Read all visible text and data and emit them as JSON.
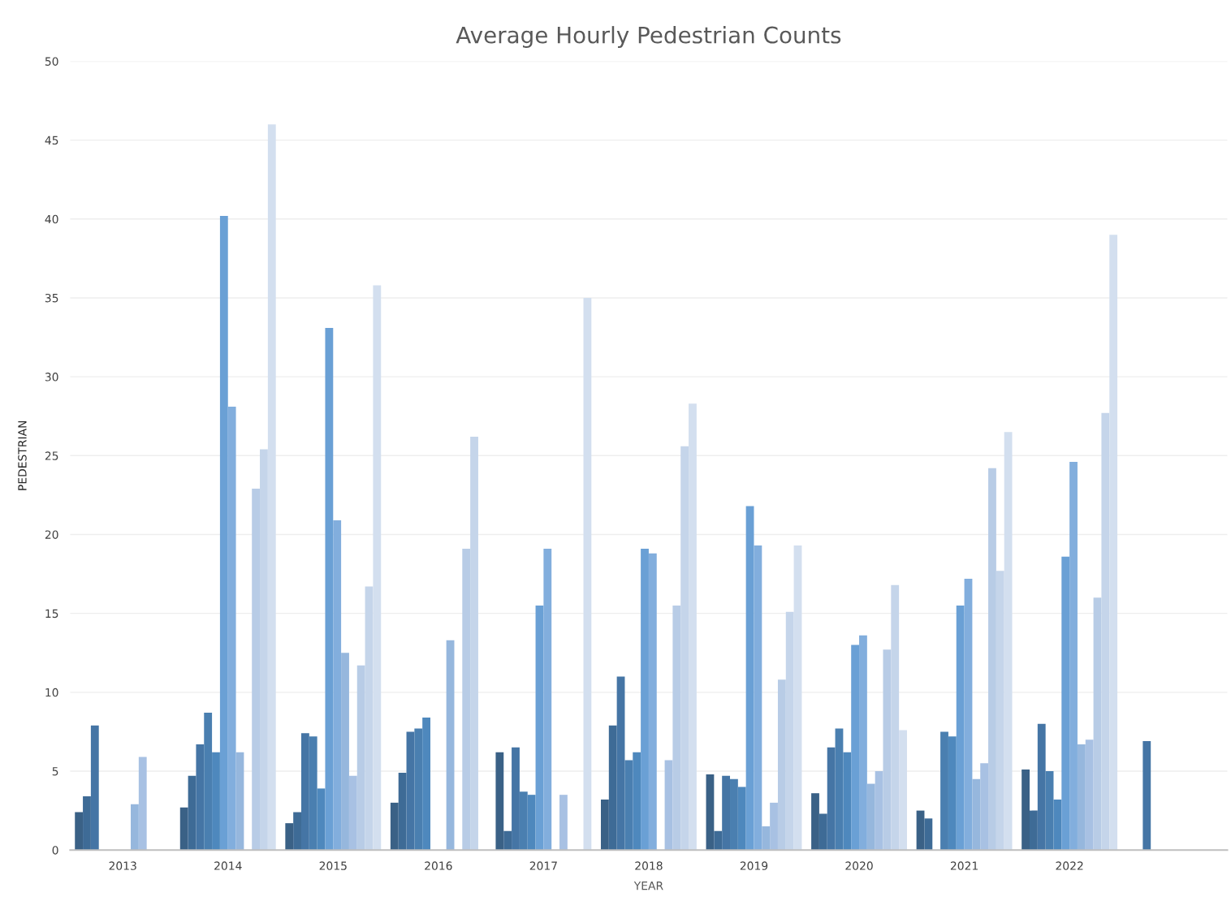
{
  "chart_data": {
    "type": "bar",
    "title": "Average Hourly Pedestrian Counts",
    "xlabel": "YEAR",
    "ylabel": "PEDESTRIAN",
    "categories": [
      "2013",
      "2014",
      "2015",
      "2016",
      "2017",
      "2018",
      "2019",
      "2020",
      "2021",
      "2022",
      null
    ],
    "series": [
      {
        "color": "#3a6186",
        "values": [
          2.4,
          2.7,
          1.7,
          3.0,
          6.2,
          3.2,
          4.8,
          3.6,
          2.5,
          5.1,
          null
        ]
      },
      {
        "color": "#3e6b96",
        "values": [
          3.4,
          4.7,
          2.4,
          4.9,
          1.2,
          7.9,
          1.2,
          2.3,
          2.0,
          2.5,
          null
        ]
      },
      {
        "color": "#4575a5",
        "values": [
          7.9,
          6.7,
          7.4,
          7.5,
          6.5,
          11.0,
          4.7,
          6.5,
          null,
          8.0,
          6.9
        ]
      },
      {
        "color": "#4a7fb0",
        "values": [
          null,
          8.7,
          7.2,
          7.7,
          3.7,
          5.7,
          4.5,
          7.7,
          7.5,
          5.0,
          null
        ]
      },
      {
        "color": "#4e88bd",
        "values": [
          null,
          6.2,
          3.9,
          8.4,
          3.5,
          6.2,
          4.0,
          6.2,
          7.2,
          3.2,
          null
        ]
      },
      {
        "color": "#6aa0d5",
        "values": [
          null,
          40.2,
          33.1,
          null,
          15.5,
          19.1,
          21.8,
          13.0,
          15.5,
          18.6,
          null
        ]
      },
      {
        "color": "#82aedd",
        "values": [
          null,
          28.1,
          20.9,
          null,
          19.1,
          18.8,
          19.3,
          13.6,
          17.2,
          24.6,
          null
        ]
      },
      {
        "color": "#96b7dd",
        "values": [
          2.9,
          6.2,
          12.5,
          13.3,
          null,
          null,
          1.5,
          4.2,
          4.5,
          6.7,
          null
        ]
      },
      {
        "color": "#a8c1e3",
        "values": [
          5.9,
          null,
          4.7,
          null,
          3.5,
          5.7,
          3.0,
          5.0,
          5.5,
          7.0,
          null
        ]
      },
      {
        "color": "#b8cce6",
        "values": [
          null,
          22.9,
          11.7,
          19.1,
          null,
          15.5,
          10.8,
          12.7,
          24.2,
          16.0,
          null
        ]
      },
      {
        "color": "#c5d5ea",
        "values": [
          null,
          25.4,
          16.7,
          26.2,
          null,
          25.6,
          15.1,
          16.8,
          17.7,
          27.7,
          null
        ]
      },
      {
        "color": "#d3dfef",
        "values": [
          null,
          46.0,
          35.8,
          null,
          35.0,
          28.3,
          19.3,
          7.6,
          26.5,
          39.0,
          null
        ]
      }
    ],
    "ylim": [
      0,
      50
    ],
    "yticks": [
      0,
      5,
      10,
      15,
      20,
      25,
      30,
      35,
      40,
      45,
      50
    ],
    "grid": "y",
    "legend": false
  }
}
